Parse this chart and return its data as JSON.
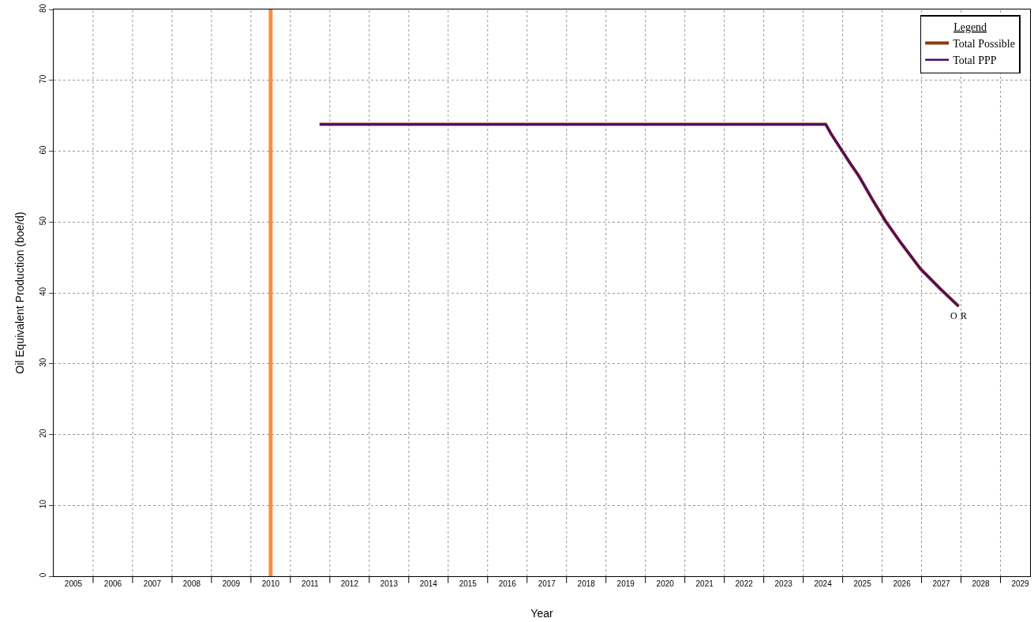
{
  "chart_data": {
    "type": "line",
    "xlabel": "Year",
    "ylabel": "Oil Equivalent Production (boe/d)",
    "legend_title": "Legend",
    "x": [
      2011.74,
      2024.57,
      2024.7,
      2024.99,
      2025.2,
      2025.41,
      2025.75,
      2026.09,
      2026.47,
      2026.97,
      2027.45,
      2027.94
    ],
    "series": [
      {
        "name": "Total Possible",
        "color": "#8b3a0f",
        "values": [
          63.8,
          63.8,
          62.5,
          60.0,
          58.2,
          56.5,
          53.2,
          50.1,
          47.1,
          43.4,
          40.7,
          38.1
        ]
      },
      {
        "name": "Total PPP",
        "color": "#4b0a6e",
        "values": [
          63.8,
          63.8,
          62.5,
          60.0,
          58.2,
          56.5,
          53.2,
          50.1,
          47.1,
          43.4,
          40.7,
          38.1
        ]
      }
    ],
    "xlim": [
      2005,
      2029.75
    ],
    "xticks": [
      {
        "value": 2005.5,
        "label": "2005"
      },
      {
        "value": 2006.5,
        "label": "2006"
      },
      {
        "value": 2007.5,
        "label": "2007"
      },
      {
        "value": 2008.5,
        "label": "2008"
      },
      {
        "value": 2009.5,
        "label": "2009"
      },
      {
        "value": 2010.5,
        "label": "2010"
      },
      {
        "value": 2011.5,
        "label": "2011"
      },
      {
        "value": 2012.5,
        "label": "2012"
      },
      {
        "value": 2013.5,
        "label": "2013"
      },
      {
        "value": 2014.5,
        "label": "2014"
      },
      {
        "value": 2015.5,
        "label": "2015"
      },
      {
        "value": 2016.5,
        "label": "2016"
      },
      {
        "value": 2017.5,
        "label": "2017"
      },
      {
        "value": 2018.5,
        "label": "2018"
      },
      {
        "value": 2019.5,
        "label": "2019"
      },
      {
        "value": 2020.5,
        "label": "2020"
      },
      {
        "value": 2021.5,
        "label": "2021"
      },
      {
        "value": 2022.5,
        "label": "2022"
      },
      {
        "value": 2023.5,
        "label": "2023"
      },
      {
        "value": 2024.5,
        "label": "2024"
      },
      {
        "value": 2025.5,
        "label": "2025"
      },
      {
        "value": 2026.5,
        "label": "2026"
      },
      {
        "value": 2027.5,
        "label": "2027"
      },
      {
        "value": 2028.5,
        "label": "2028"
      },
      {
        "value": 2029.5,
        "label": "2029"
      },
      {
        "value": 2006,
        "label": null
      },
      {
        "value": 2007,
        "label": null
      },
      {
        "value": 2008,
        "label": null
      },
      {
        "value": 2009,
        "label": null
      },
      {
        "value": 2010,
        "label": null
      },
      {
        "value": 2011,
        "label": null
      },
      {
        "value": 2012,
        "label": null
      },
      {
        "value": 2013,
        "label": null
      },
      {
        "value": 2014,
        "label": null
      },
      {
        "value": 2015,
        "label": null
      },
      {
        "value": 2016,
        "label": null
      },
      {
        "value": 2017,
        "label": null
      },
      {
        "value": 2018,
        "label": null
      },
      {
        "value": 2019,
        "label": null
      },
      {
        "value": 2020,
        "label": null
      },
      {
        "value": 2021,
        "label": null
      },
      {
        "value": 2022,
        "label": null
      },
      {
        "value": 2023,
        "label": null
      },
      {
        "value": 2024,
        "label": null
      },
      {
        "value": 2025,
        "label": null
      },
      {
        "value": 2026,
        "label": null
      },
      {
        "value": 2027,
        "label": null
      },
      {
        "value": 2028,
        "label": null
      },
      {
        "value": 2029,
        "label": null
      }
    ],
    "ylim": [
      0,
      80
    ],
    "yticks": [
      0,
      10,
      20,
      30,
      40,
      50,
      60,
      70,
      80
    ],
    "ref_lines": [
      {
        "axis": "x",
        "value": 2010.5,
        "color": "#ff8c42"
      }
    ],
    "annotations": [
      {
        "text": "O",
        "x": 2027.94,
        "y": 38.1
      },
      {
        "text": "R",
        "x": 2027.94,
        "y": 38.1
      }
    ],
    "grid": true,
    "legend": "top right",
    "marker": "none",
    "line_style": "solid"
  }
}
